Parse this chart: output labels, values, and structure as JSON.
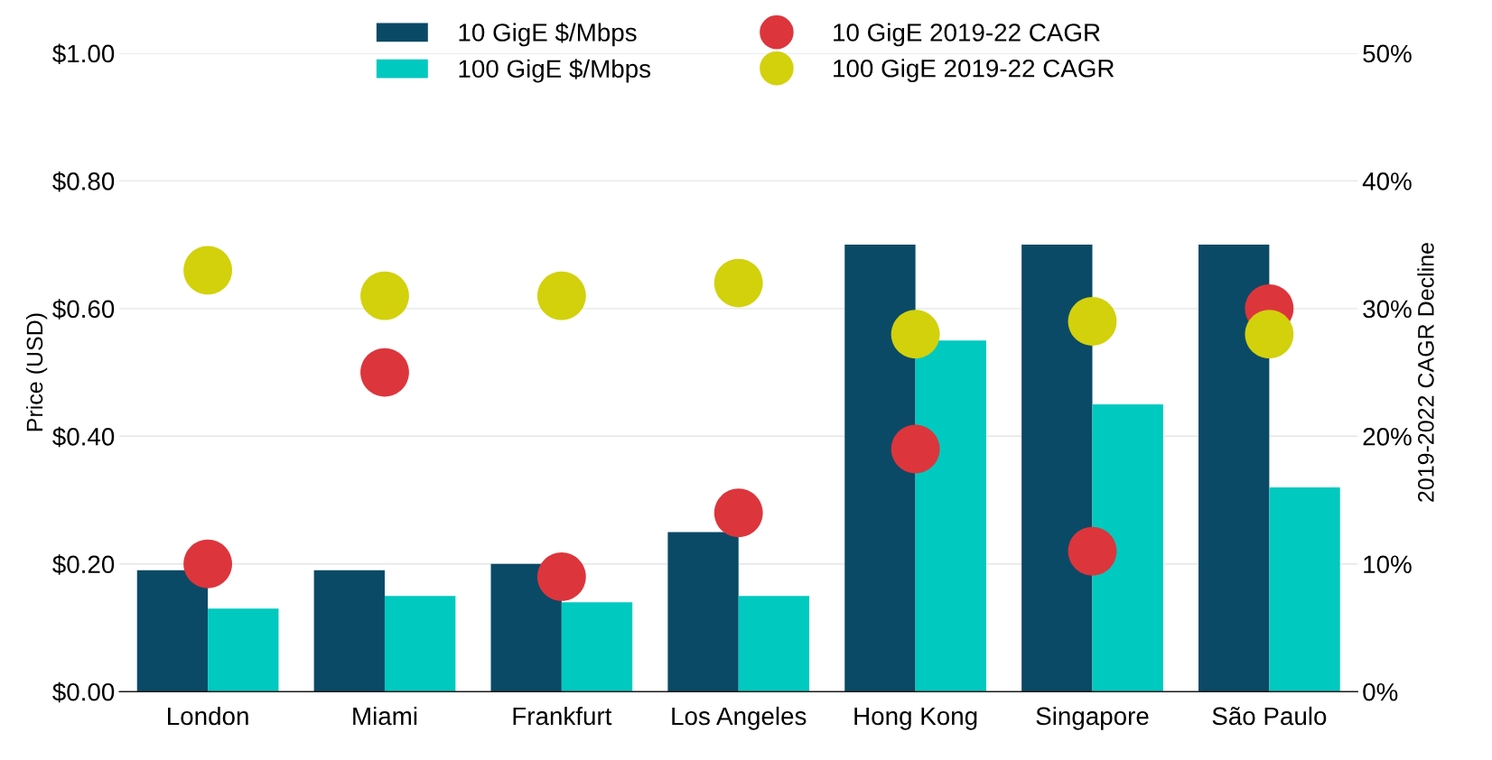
{
  "chart_data": {
    "type": "bar",
    "categories": [
      "London",
      "Miami",
      "Frankfurt",
      "Los Angeles",
      "Hong Kong",
      "Singapore",
      "São Paulo"
    ],
    "ylabel": "Price (USD)",
    "y2label": "2019-2022 CAGR Decline",
    "ylim": [
      0,
      1
    ],
    "yticks": [
      {
        "value": 0,
        "label": "$0.00"
      },
      {
        "value": 0.2,
        "label": "$0.20"
      },
      {
        "value": 0.4,
        "label": "$0.40"
      },
      {
        "value": 0.6,
        "label": "$0.60"
      },
      {
        "value": 0.8,
        "label": "$0.80"
      },
      {
        "value": 1,
        "label": "$1.00"
      }
    ],
    "y2lim": [
      0,
      50
    ],
    "y2ticks": [
      {
        "value": 0,
        "label": "0%"
      },
      {
        "value": 10,
        "label": "10%"
      },
      {
        "value": 20,
        "label": "20%"
      },
      {
        "value": 30,
        "label": "30%"
      },
      {
        "value": 40,
        "label": "40%"
      },
      {
        "value": 50,
        "label": "50%"
      }
    ],
    "grid": "y",
    "legend": "top",
    "series": [
      {
        "name": "10 GigE $/Mbps",
        "color": "#0a4a66",
        "values": [
          0.19,
          0.19,
          0.2,
          0.25,
          0.7,
          0.7,
          0.7
        ]
      },
      {
        "name": "100 GigE $/Mbps",
        "color": "#00c9bf",
        "values": [
          0.13,
          0.15,
          0.14,
          0.15,
          0.55,
          0.45,
          0.32
        ]
      },
      {
        "name": "10 GigE 2019-22 CAGR",
        "type": "scatter",
        "axis": "y2",
        "marker": "circle",
        "color": "#dd353c",
        "values": [
          10,
          25,
          9,
          14,
          19,
          11,
          30
        ]
      },
      {
        "name": "100 GigE 2019-22 CAGR",
        "type": "scatter",
        "axis": "y2",
        "marker": "circle",
        "color": "#d2d10c",
        "values": [
          33,
          31,
          31,
          32,
          28,
          29,
          28
        ]
      }
    ]
  }
}
